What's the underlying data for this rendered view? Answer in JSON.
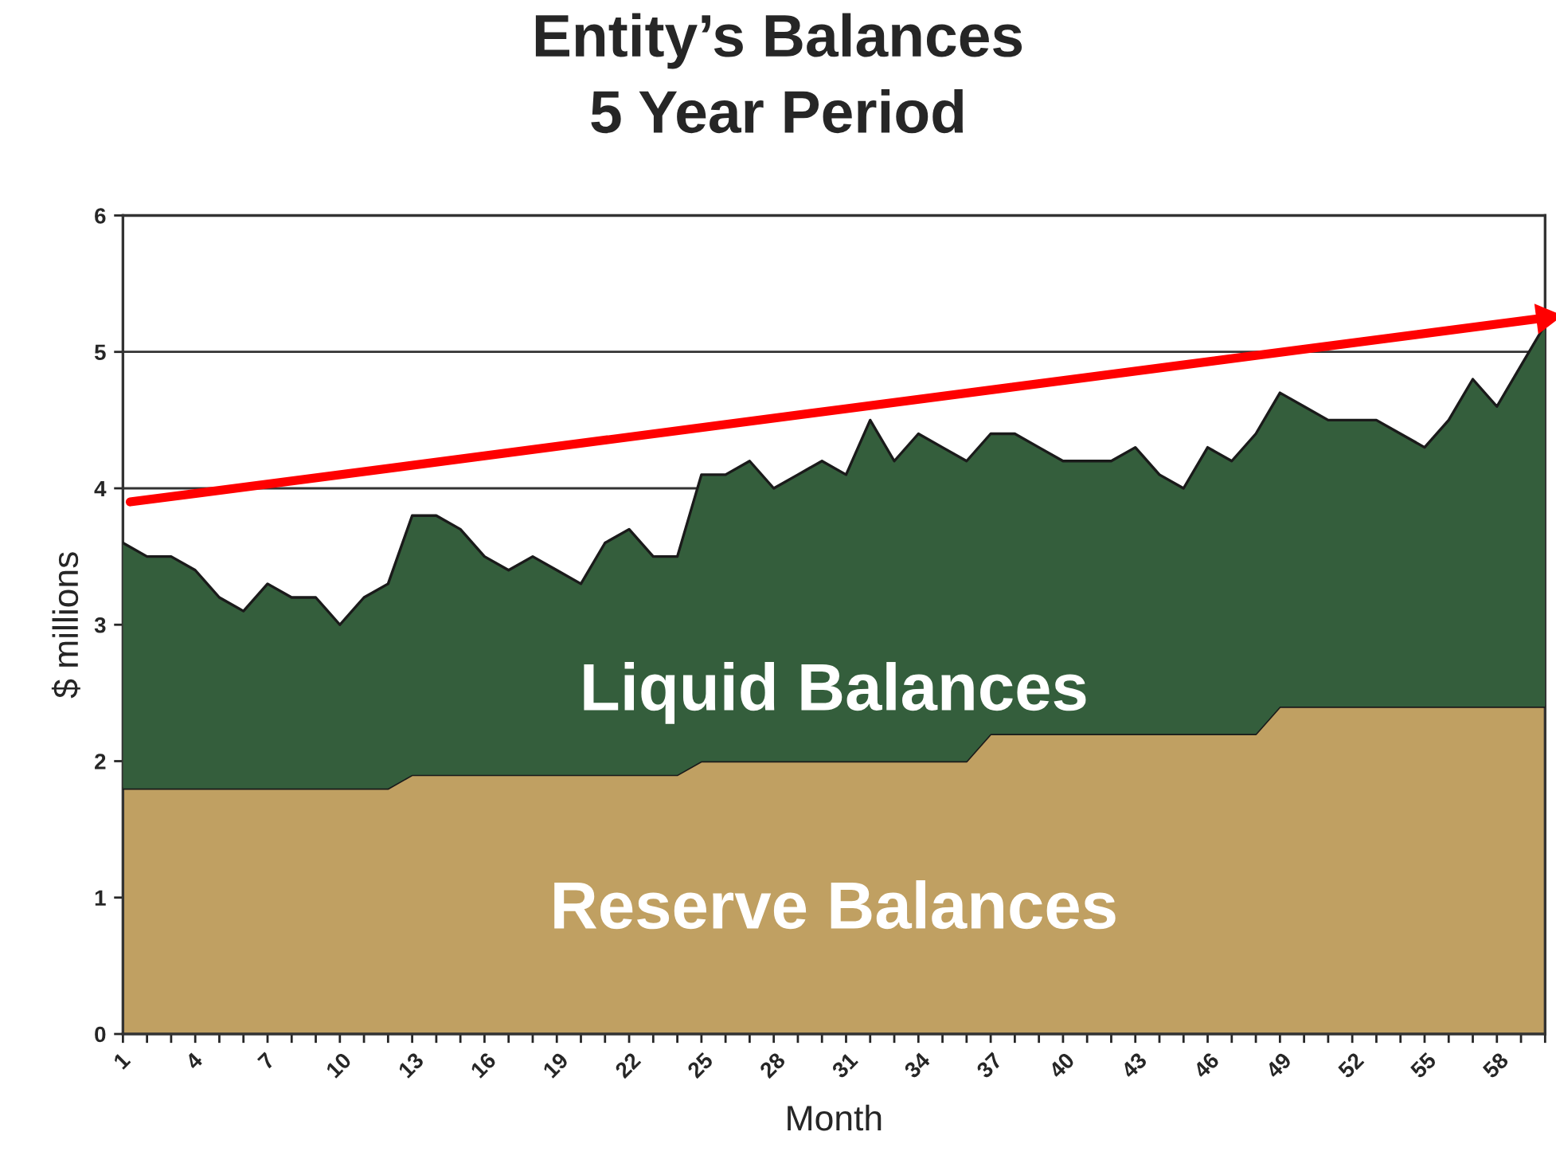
{
  "chart_data": {
    "type": "area",
    "title": "Entity’s Balances",
    "subtitle": "5 Year Period",
    "xlabel": "Month",
    "ylabel": "$ millions",
    "x": [
      1,
      2,
      3,
      4,
      5,
      6,
      7,
      8,
      9,
      10,
      11,
      12,
      13,
      14,
      15,
      16,
      17,
      18,
      19,
      20,
      21,
      22,
      23,
      24,
      25,
      26,
      27,
      28,
      29,
      30,
      31,
      32,
      33,
      34,
      35,
      36,
      37,
      38,
      39,
      40,
      41,
      42,
      43,
      44,
      45,
      46,
      47,
      48,
      49,
      50,
      51,
      52,
      53,
      54,
      55,
      56,
      57,
      58,
      59,
      60
    ],
    "stacked": true,
    "series": [
      {
        "name": "Reserve Balances",
        "color": "#c0a062",
        "values": [
          1.8,
          1.8,
          1.8,
          1.8,
          1.8,
          1.8,
          1.8,
          1.8,
          1.8,
          1.8,
          1.8,
          1.8,
          1.9,
          1.9,
          1.9,
          1.9,
          1.9,
          1.9,
          1.9,
          1.9,
          1.9,
          1.9,
          1.9,
          1.9,
          2.0,
          2.0,
          2.0,
          2.0,
          2.0,
          2.0,
          2.0,
          2.0,
          2.0,
          2.0,
          2.0,
          2.0,
          2.2,
          2.2,
          2.2,
          2.2,
          2.2,
          2.2,
          2.2,
          2.2,
          2.2,
          2.2,
          2.2,
          2.2,
          2.4,
          2.4,
          2.4,
          2.4,
          2.4,
          2.4,
          2.4,
          2.4,
          2.4,
          2.4,
          2.4,
          2.4
        ]
      },
      {
        "name": "Liquid Balances",
        "color": "#345e3c",
        "values": [
          1.8,
          1.7,
          1.7,
          1.6,
          1.4,
          1.3,
          1.5,
          1.4,
          1.4,
          1.2,
          1.4,
          1.5,
          1.9,
          1.9,
          1.8,
          1.6,
          1.5,
          1.6,
          1.5,
          1.4,
          1.7,
          1.8,
          1.6,
          1.6,
          2.1,
          2.1,
          2.2,
          2.0,
          2.1,
          2.2,
          2.1,
          2.5,
          2.2,
          2.4,
          2.3,
          2.2,
          2.2,
          2.2,
          2.1,
          2.0,
          2.0,
          2.0,
          2.1,
          1.9,
          1.8,
          2.1,
          2.0,
          2.2,
          2.3,
          2.2,
          2.1,
          2.1,
          2.1,
          2.0,
          1.9,
          2.1,
          2.4,
          2.2,
          2.5,
          2.8
        ]
      },
      {
        "type": "line",
        "color": "#ff0000",
        "x": [
          1.3,
          60
        ],
        "values": [
          3.9,
          5.25
        ]
      }
    ],
    "xlim": [
      1,
      60
    ],
    "ylim": [
      0,
      6
    ],
    "yticks": [
      0,
      1,
      2,
      3,
      4,
      5,
      6
    ],
    "xticks": [
      1,
      {
        "value": 2,
        "label": null
      },
      {
        "value": 3,
        "label": null
      },
      4,
      {
        "value": 5,
        "label": null
      },
      {
        "value": 6,
        "label": null
      },
      7,
      {
        "value": 8,
        "label": null
      },
      {
        "value": 9,
        "label": null
      },
      10,
      {
        "value": 11,
        "label": null
      },
      {
        "value": 12,
        "label": null
      },
      13,
      {
        "value": 14,
        "label": null
      },
      {
        "value": 15,
        "label": null
      },
      16,
      {
        "value": 17,
        "label": null
      },
      {
        "value": 18,
        "label": null
      },
      19,
      {
        "value": 20,
        "label": null
      },
      {
        "value": 21,
        "label": null
      },
      22,
      {
        "value": 23,
        "label": null
      },
      {
        "value": 24,
        "label": null
      },
      25,
      {
        "value": 26,
        "label": null
      },
      {
        "value": 27,
        "label": null
      },
      28,
      {
        "value": 29,
        "label": null
      },
      {
        "value": 30,
        "label": null
      },
      31,
      {
        "value": 32,
        "label": null
      },
      {
        "value": 33,
        "label": null
      },
      34,
      {
        "value": 35,
        "label": null
      },
      {
        "value": 36,
        "label": null
      },
      37,
      {
        "value": 38,
        "label": null
      },
      {
        "value": 39,
        "label": null
      },
      40,
      {
        "value": 41,
        "label": null
      },
      {
        "value": 42,
        "label": null
      },
      43,
      {
        "value": 44,
        "label": null
      },
      {
        "value": 45,
        "label": null
      },
      46,
      {
        "value": 47,
        "label": null
      },
      {
        "value": 48,
        "label": null
      },
      49,
      {
        "value": 50,
        "label": null
      },
      {
        "value": 51,
        "label": null
      },
      52,
      {
        "value": 53,
        "label": null
      },
      {
        "value": 54,
        "label": null
      },
      55,
      {
        "value": 56,
        "label": null
      },
      {
        "value": 57,
        "label": null
      },
      58,
      {
        "value": 59,
        "label": null
      },
      {
        "value": 60,
        "label": null
      }
    ],
    "grid": "y",
    "legend": false
  }
}
